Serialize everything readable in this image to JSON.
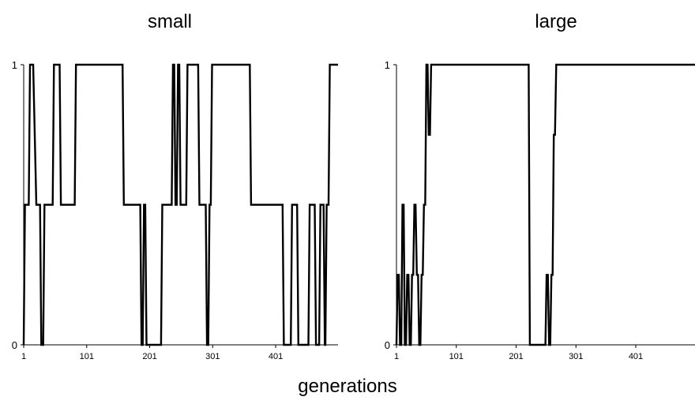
{
  "chart_data": [
    {
      "type": "line",
      "title": "small",
      "xlabel": "generations",
      "ylabel": "",
      "xlim": [
        1,
        500
      ],
      "ylim": [
        0,
        1
      ],
      "x_ticks": [
        "1",
        "101",
        "201",
        "301",
        "401"
      ],
      "y_ticks": [
        "0",
        "1"
      ],
      "grid": false,
      "series": [
        {
          "x": [
            1,
            3,
            9,
            11,
            16,
            21,
            27,
            29,
            32,
            34,
            47,
            49,
            58,
            60,
            82,
            84,
            158,
            160,
            186,
            188,
            190,
            192,
            194,
            196,
            219,
            221,
            236,
            238,
            240,
            242,
            244,
            246,
            248,
            250,
            259,
            261,
            278,
            280,
            290,
            292,
            294,
            296,
            298,
            300,
            360,
            362,
            412,
            414,
            425,
            427,
            435,
            437,
            453,
            455,
            463,
            465,
            470,
            472,
            477,
            479,
            480,
            482,
            485,
            487,
            500
          ],
          "values": [
            0,
            0.5,
            0.5,
            1,
            1,
            0.5,
            0.5,
            0,
            0,
            0.5,
            0.5,
            1,
            1,
            0.5,
            0.5,
            1,
            1,
            0.5,
            0.5,
            0,
            0,
            0.5,
            0.5,
            0,
            0,
            0.5,
            0.5,
            1,
            1,
            0.5,
            0.5,
            1,
            1,
            0.5,
            0.5,
            1,
            1,
            0.5,
            0.5,
            0,
            0,
            0.5,
            0.5,
            1,
            1,
            0.5,
            0.5,
            0,
            0,
            0.5,
            0.5,
            0,
            0,
            0.5,
            0.5,
            0,
            0,
            0.5,
            0.5,
            0,
            0,
            0.5,
            0.5,
            1,
            1
          ]
        }
      ]
    },
    {
      "type": "line",
      "title": "large",
      "xlabel": "generations",
      "ylabel": "",
      "xlim": [
        1,
        500
      ],
      "ylim": [
        0,
        1
      ],
      "x_ticks": [
        "1",
        "101",
        "201",
        "301",
        "401"
      ],
      "y_ticks": [
        "0",
        "1"
      ],
      "grid": false,
      "series": [
        {
          "x": [
            1,
            3,
            5,
            7,
            9,
            11,
            13,
            15,
            17,
            19,
            21,
            23,
            25,
            27,
            29,
            31,
            33,
            35,
            37,
            39,
            41,
            43,
            45,
            47,
            49,
            51,
            53,
            55,
            57,
            59,
            61,
            222,
            224,
            250,
            252,
            254,
            256,
            258,
            260,
            262,
            264,
            266,
            268,
            270,
            500
          ],
          "values": [
            0,
            0.25,
            0.25,
            0,
            0,
            0.5,
            0.5,
            0,
            0,
            0.25,
            0.25,
            0,
            0,
            0.25,
            0.25,
            0.5,
            0.5,
            0.25,
            0.25,
            0,
            0,
            0.25,
            0.25,
            0.5,
            0.5,
            1,
            1,
            0.75,
            0.75,
            1,
            1,
            1,
            0,
            0,
            0.25,
            0.25,
            0,
            0,
            0.25,
            0.25,
            0.75,
            0.75,
            1,
            1,
            1
          ]
        }
      ]
    }
  ]
}
